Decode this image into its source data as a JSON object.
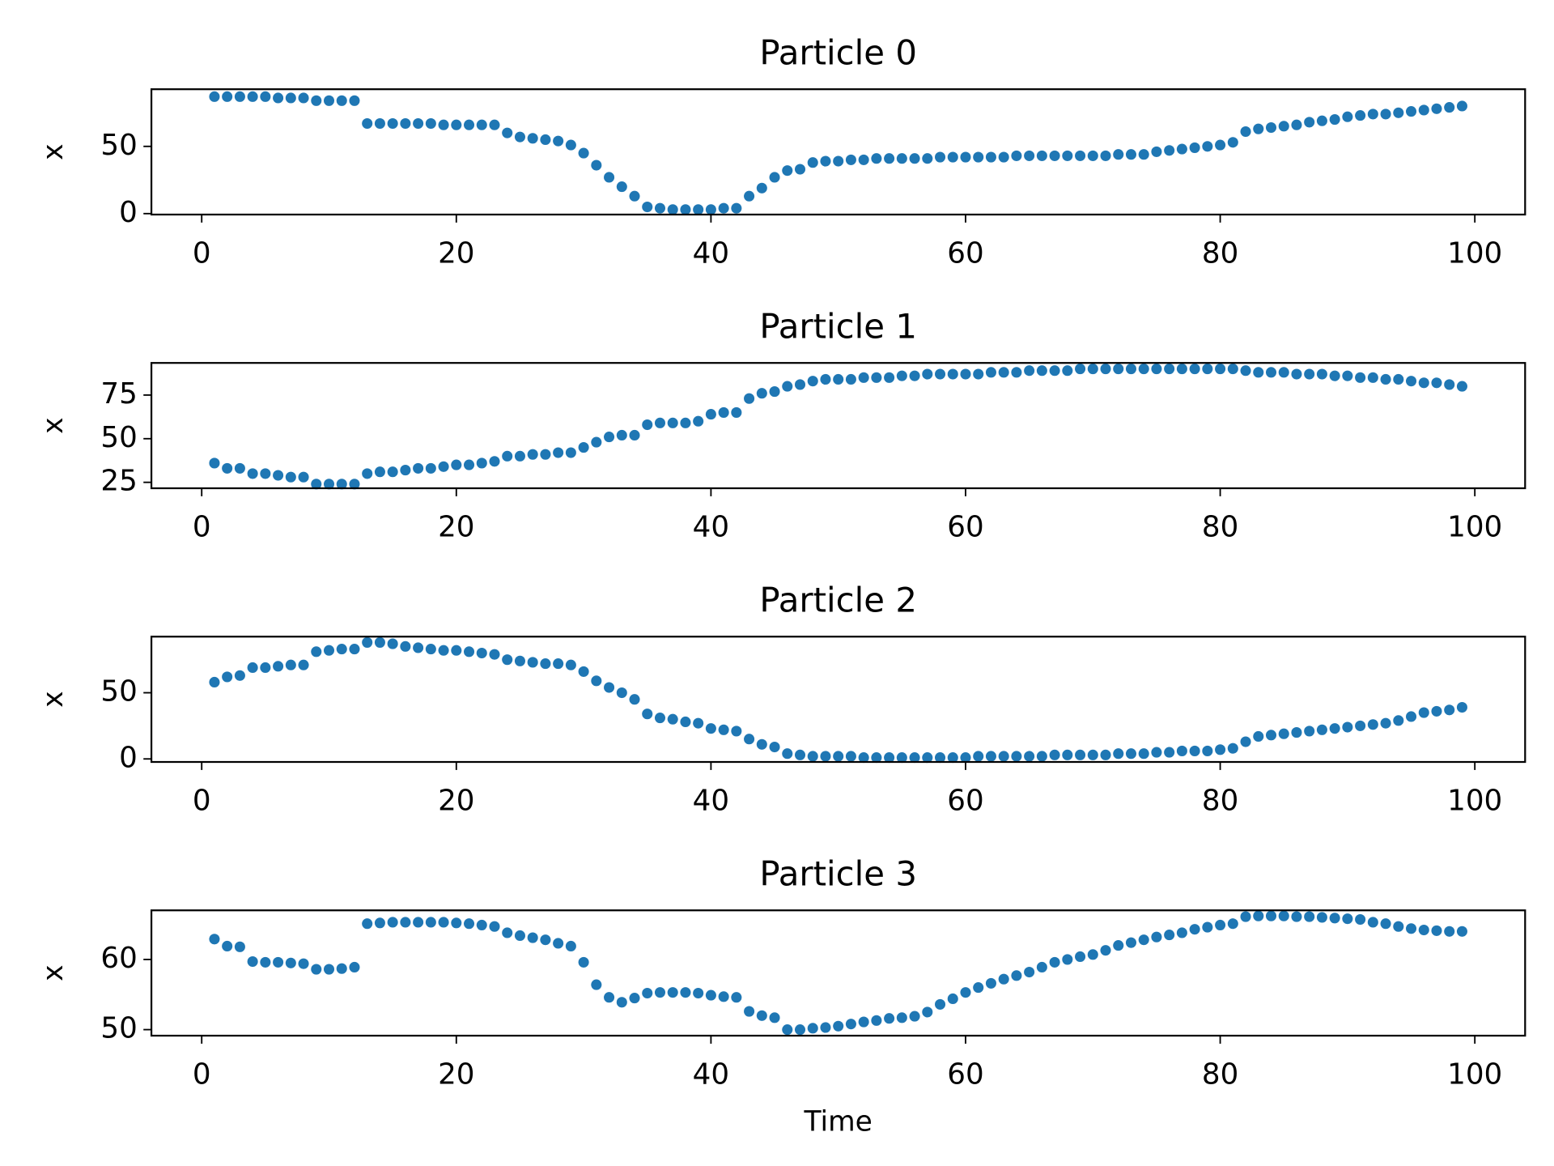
{
  "chart_data": [
    {
      "type": "scatter",
      "title": "Particle 0",
      "y_label": "x",
      "color": "#1f77b4",
      "x": [
        1,
        2,
        3,
        4,
        5,
        6,
        7,
        8,
        9,
        10,
        11,
        12,
        13,
        14,
        15,
        16,
        17,
        18,
        19,
        20,
        21,
        22,
        23,
        24,
        25,
        26,
        27,
        28,
        29,
        30,
        31,
        32,
        33,
        34,
        35,
        36,
        37,
        38,
        39,
        40,
        41,
        42,
        43,
        44,
        45,
        46,
        47,
        48,
        49,
        50,
        51,
        52,
        53,
        54,
        55,
        56,
        57,
        58,
        59,
        60,
        61,
        62,
        63,
        64,
        65,
        66,
        67,
        68,
        69,
        70,
        71,
        72,
        73,
        74,
        75,
        76,
        77,
        78,
        79,
        80,
        81,
        82,
        83,
        84,
        85,
        86,
        87,
        88,
        89,
        90,
        91,
        92,
        93,
        94,
        95,
        96,
        97,
        98,
        99
      ],
      "values": [
        87,
        87,
        87,
        87,
        87,
        86,
        86,
        86,
        84,
        84,
        84,
        84,
        67,
        67,
        67,
        67,
        67,
        67,
        66,
        66,
        66,
        66,
        66,
        60,
        57,
        56,
        55,
        54,
        51,
        45,
        36,
        27,
        20,
        13,
        5,
        4,
        3,
        3,
        3,
        3,
        4,
        4,
        13,
        19,
        27,
        32,
        33,
        38,
        39,
        39,
        40,
        40,
        41,
        41,
        41,
        41,
        41,
        42,
        42,
        42,
        42,
        42,
        42,
        43,
        43,
        43,
        43,
        43,
        43,
        43,
        43,
        44,
        44,
        44,
        46,
        47,
        48,
        49,
        50,
        51,
        53,
        61,
        63,
        64,
        65,
        66,
        68,
        69,
        70,
        72,
        73,
        74,
        74,
        75,
        76,
        77,
        78,
        79,
        80
      ],
      "xlim": [
        -3.95,
        103.95
      ],
      "xticks": [
        0,
        20,
        40,
        60,
        80,
        100
      ],
      "ylim": [
        -0.7,
        92.5
      ],
      "yticks": [
        0,
        50
      ]
    },
    {
      "type": "scatter",
      "title": "Particle 1",
      "y_label": "x",
      "color": "#1f77b4",
      "x": [
        1,
        2,
        3,
        4,
        5,
        6,
        7,
        8,
        9,
        10,
        11,
        12,
        13,
        14,
        15,
        16,
        17,
        18,
        19,
        20,
        21,
        22,
        23,
        24,
        25,
        26,
        27,
        28,
        29,
        30,
        31,
        32,
        33,
        34,
        35,
        36,
        37,
        38,
        39,
        40,
        41,
        42,
        43,
        44,
        45,
        46,
        47,
        48,
        49,
        50,
        51,
        52,
        53,
        54,
        55,
        56,
        57,
        58,
        59,
        60,
        61,
        62,
        63,
        64,
        65,
        66,
        67,
        68,
        69,
        70,
        71,
        72,
        73,
        74,
        75,
        76,
        77,
        78,
        79,
        80,
        81,
        82,
        83,
        84,
        85,
        86,
        87,
        88,
        89,
        90,
        91,
        92,
        93,
        94,
        95,
        96,
        97,
        98,
        99
      ],
      "values": [
        36,
        33,
        33,
        30,
        30,
        29,
        28,
        28,
        24,
        24,
        24,
        24,
        30,
        31,
        31,
        32,
        33,
        33,
        34,
        35,
        35,
        36,
        37,
        40,
        40,
        41,
        41,
        42,
        42,
        45,
        48,
        51,
        52,
        52,
        58,
        59,
        59,
        59,
        60,
        64,
        65,
        65,
        73,
        76,
        77,
        80,
        81,
        83,
        84,
        84,
        84,
        85,
        85,
        85,
        86,
        86,
        87,
        87,
        87,
        87,
        87,
        88,
        88,
        88,
        89,
        89,
        89,
        89,
        90,
        90,
        90,
        90,
        90,
        90,
        90,
        90,
        90,
        90,
        90,
        90,
        90,
        89,
        88,
        88,
        88,
        87,
        87,
        87,
        86,
        86,
        85,
        85,
        84,
        84,
        83,
        82,
        82,
        81,
        80
      ],
      "xlim": [
        -3.95,
        103.95
      ],
      "xticks": [
        0,
        20,
        40,
        60,
        80,
        100
      ],
      "ylim": [
        21.6,
        93.4
      ],
      "yticks": [
        25,
        50,
        75
      ]
    },
    {
      "type": "scatter",
      "title": "Particle 2",
      "y_label": "x",
      "color": "#1f77b4",
      "x": [
        1,
        2,
        3,
        4,
        5,
        6,
        7,
        8,
        9,
        10,
        11,
        12,
        13,
        14,
        15,
        16,
        17,
        18,
        19,
        20,
        21,
        22,
        23,
        24,
        25,
        26,
        27,
        28,
        29,
        30,
        31,
        32,
        33,
        34,
        35,
        36,
        37,
        38,
        39,
        40,
        41,
        42,
        43,
        44,
        45,
        46,
        47,
        48,
        49,
        50,
        51,
        52,
        53,
        54,
        55,
        56,
        57,
        58,
        59,
        60,
        61,
        62,
        63,
        64,
        65,
        66,
        67,
        68,
        69,
        70,
        71,
        72,
        73,
        74,
        75,
        76,
        77,
        78,
        79,
        80,
        81,
        82,
        83,
        84,
        85,
        86,
        87,
        88,
        89,
        90,
        91,
        92,
        93,
        94,
        95,
        96,
        97,
        98,
        99
      ],
      "values": [
        58,
        62,
        63,
        69,
        69,
        70,
        71,
        71,
        81,
        82,
        83,
        83,
        88,
        88,
        87,
        85,
        84,
        83,
        82,
        82,
        81,
        80,
        79,
        75,
        74,
        73,
        72,
        72,
        71,
        66,
        59,
        54,
        50,
        45,
        34,
        31,
        30,
        28,
        27,
        23,
        22,
        21,
        15,
        11,
        9,
        4,
        3,
        2,
        2,
        2,
        2,
        1,
        1,
        1,
        1,
        1,
        1,
        1,
        1,
        1,
        2,
        2,
        2,
        2,
        2,
        2,
        3,
        3,
        3,
        3,
        3,
        4,
        4,
        4,
        5,
        5,
        6,
        6,
        6,
        7,
        8,
        13,
        17,
        18,
        19,
        20,
        21,
        22,
        23,
        24,
        25,
        26,
        27,
        29,
        32,
        35,
        36,
        37,
        39
      ],
      "xlim": [
        -3.95,
        103.95
      ],
      "xticks": [
        0,
        20,
        40,
        60,
        80,
        100
      ],
      "ylim": [
        -2.3,
        92.4
      ],
      "yticks": [
        0,
        50
      ]
    },
    {
      "type": "scatter",
      "title": "Particle 3",
      "y_label": "x",
      "x_label": "Time",
      "color": "#1f77b4",
      "x": [
        1,
        2,
        3,
        4,
        5,
        6,
        7,
        8,
        9,
        10,
        11,
        12,
        13,
        14,
        15,
        16,
        17,
        18,
        19,
        20,
        21,
        22,
        23,
        24,
        25,
        26,
        27,
        28,
        29,
        30,
        31,
        32,
        33,
        34,
        35,
        36,
        37,
        38,
        39,
        40,
        41,
        42,
        43,
        44,
        45,
        46,
        47,
        48,
        49,
        50,
        51,
        52,
        53,
        54,
        55,
        56,
        57,
        58,
        59,
        60,
        61,
        62,
        63,
        64,
        65,
        66,
        67,
        68,
        69,
        70,
        71,
        72,
        73,
        74,
        75,
        76,
        77,
        78,
        79,
        80,
        81,
        82,
        83,
        84,
        85,
        86,
        87,
        88,
        89,
        90,
        91,
        92,
        93,
        94,
        95,
        96,
        97,
        98,
        99
      ],
      "values": [
        62.9,
        61.9,
        61.8,
        59.7,
        59.6,
        59.6,
        59.5,
        59.4,
        58.6,
        58.6,
        58.7,
        58.9,
        65.1,
        65.2,
        65.3,
        65.3,
        65.3,
        65.3,
        65.3,
        65.2,
        65.1,
        64.9,
        64.7,
        63.8,
        63.4,
        63.1,
        62.8,
        62.3,
        61.9,
        59.6,
        56.4,
        54.6,
        53.9,
        54.5,
        55.2,
        55.3,
        55.3,
        55.3,
        55.2,
        54.9,
        54.7,
        54.6,
        52.6,
        52.0,
        51.7,
        50.0,
        50.0,
        50.2,
        50.3,
        50.5,
        50.8,
        51.1,
        51.3,
        51.6,
        51.7,
        51.9,
        52.5,
        53.6,
        54.4,
        55.3,
        56.0,
        56.6,
        57.2,
        57.7,
        58.2,
        58.9,
        59.6,
        60.0,
        60.4,
        60.7,
        61.3,
        62.0,
        62.4,
        62.8,
        63.2,
        63.5,
        63.8,
        64.3,
        64.6,
        64.9,
        65.1,
        66.1,
        66.2,
        66.2,
        66.2,
        66.1,
        66.1,
        66.0,
        65.9,
        65.8,
        65.7,
        65.3,
        65.1,
        64.7,
        64.4,
        64.2,
        64.1,
        64.0,
        64.0
      ],
      "xlim": [
        -3.95,
        103.95
      ],
      "xticks": [
        0,
        20,
        40,
        60,
        80,
        100
      ],
      "ylim": [
        49.14,
        67.0
      ],
      "yticks": [
        50,
        60
      ]
    }
  ]
}
